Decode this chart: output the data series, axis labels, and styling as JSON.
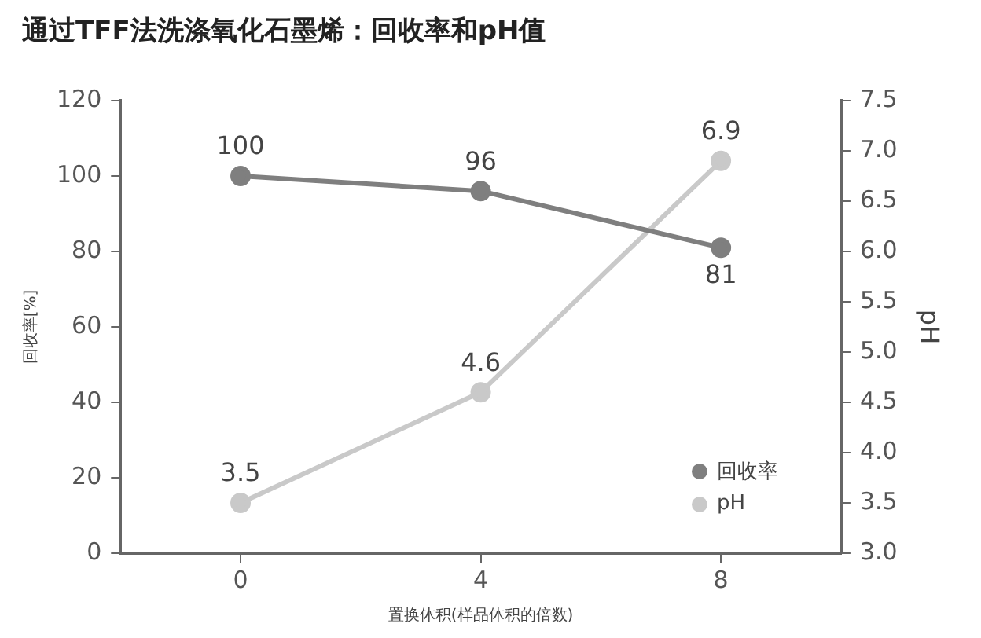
{
  "chart_data": {
    "type": "line",
    "title": "通过TFF法洗涤氧化石墨烯：回收率和pH值",
    "xlabel": "置换体积(样品体积的倍数)",
    "ylabel": "回收率[%]",
    "y2label": "pH",
    "categories": [
      "0",
      "4",
      "8"
    ],
    "series": [
      {
        "name": "回收率",
        "color": "#7f7f7f",
        "values": [
          100,
          96,
          81
        ]
      },
      {
        "name": "pH",
        "color": "#c9c9c9",
        "values": [
          3.5,
          4.6,
          6.9
        ],
        "axis": "y2"
      }
    ],
    "ylim": [
      0,
      120
    ],
    "yticks": [
      0,
      20,
      40,
      60,
      80,
      100,
      120
    ],
    "y2lim": [
      3.0,
      7.5
    ],
    "y2ticks": [
      {
        "value": 3,
        "label": "3.0"
      },
      3.5,
      {
        "value": 4,
        "label": "4.0"
      },
      4.5,
      {
        "value": 5,
        "label": "5.0"
      },
      5.5,
      {
        "value": 6,
        "label": "6.0"
      },
      6.5,
      {
        "value": 7,
        "label": "7.0"
      },
      7.5
    ],
    "grid": false,
    "legend": "bottom right",
    "marker": "circle",
    "line_style": "solid",
    "data_labels": true
  }
}
